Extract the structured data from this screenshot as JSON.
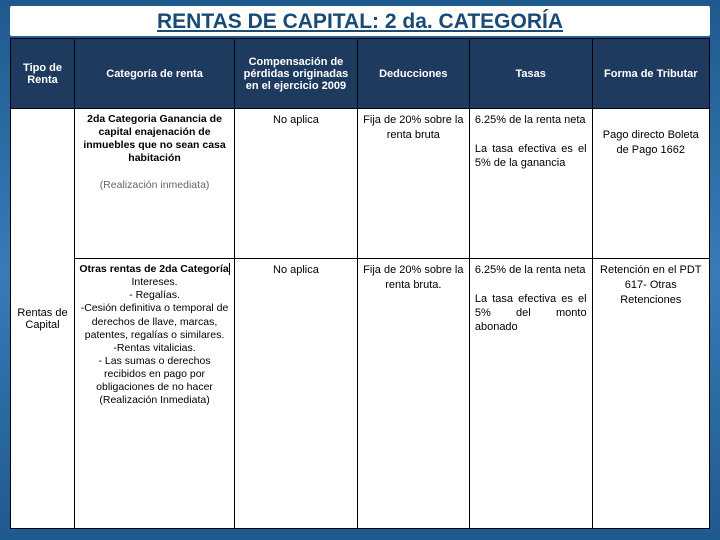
{
  "title": "RENTAS DE CAPITAL: 2 da. CATEGORÍA",
  "headers": {
    "tipo": "Tipo de Renta",
    "categoria": "Categoría de renta",
    "compensacion": "Compensación de pérdidas originadas en el ejercicio 2009",
    "deducciones": "Deducciones",
    "tasas": "Tasas",
    "forma": "Forma de Tributar"
  },
  "rowLabel": "Rentas de Capital",
  "rows": [
    {
      "categoria_bold": "2da Categoria Ganancia de capital enajenación de inmuebles que no sean casa habitación",
      "categoria_gray": "(Realización inmediata)",
      "compensacion": "No aplica",
      "deducciones": "Fija de 20% sobre la renta bruta",
      "tasas_line1": "6.25% de la renta neta",
      "tasas_line2": "La tasa efectiva es el 5% de la ganancia",
      "forma": "Pago directo Boleta de Pago 1662"
    },
    {
      "categoria_bold": "Otras rentas de 2da Categoría",
      "categoria_rest": "Intereses.\n- Regalías.\n-Cesión definitiva o temporal de derechos de llave, marcas, patentes, regalías o similares.\n-Rentas vitalicias.\n- Las sumas o derechos recibidos en pago por obligaciones de no hacer\n(Realización Inmediata)",
      "compensacion": "No aplica",
      "deducciones": "Fija de 20% sobre la renta bruta.",
      "tasas_line1": "6.25% de la renta neta",
      "tasas_line2": "La tasa efectiva es el 5% del monto abonado",
      "forma": "Retención en el PDT 617- Otras Retenciones"
    }
  ]
}
